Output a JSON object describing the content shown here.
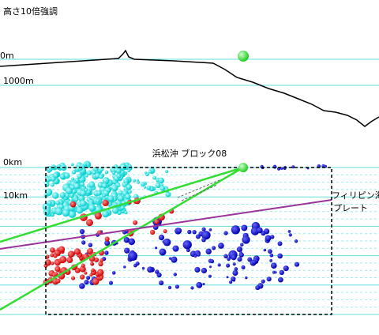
{
  "header": {
    "title": "高さ10倍強調"
  },
  "topography": {
    "labels": [
      "0m",
      "1000m"
    ]
  },
  "section": {
    "title": "浜松沖 ブロック08",
    "depth_labels": [
      "0km",
      "10km"
    ],
    "plate_label": [
      "フィリピン海",
      "プレート"
    ]
  }
}
